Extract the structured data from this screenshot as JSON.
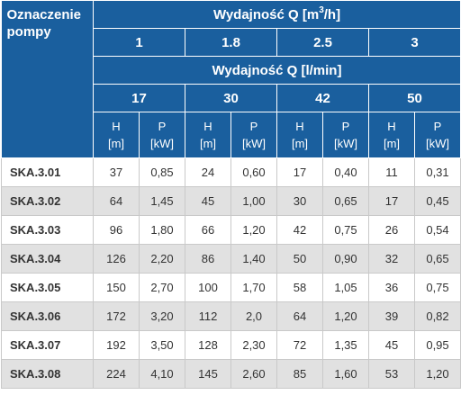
{
  "header": {
    "pump_label": "Oznaczenie pompy",
    "flow_m3h_title": "Wydajność Q [m",
    "flow_m3h_sup": "3",
    "flow_m3h_suffix": "/h]",
    "flow_m3h_values": [
      "1",
      "1.8",
      "2.5",
      "3"
    ],
    "flow_lmin_title": "Wydajność Q [l/min]",
    "flow_lmin_values": [
      "17",
      "30",
      "42",
      "50"
    ],
    "col_h_symbol": "H",
    "col_h_unit": "[m]",
    "col_p_symbol": "P",
    "col_p_unit": "[kW]"
  },
  "rows": [
    {
      "name": "SKA.3.01",
      "cells": [
        "37",
        "0,85",
        "24",
        "0,60",
        "17",
        "0,40",
        "11",
        "0,31"
      ]
    },
    {
      "name": "SKA.3.02",
      "cells": [
        "64",
        "1,45",
        "45",
        "1,00",
        "30",
        "0,65",
        "17",
        "0,45"
      ]
    },
    {
      "name": "SKA.3.03",
      "cells": [
        "96",
        "1,80",
        "66",
        "1,20",
        "42",
        "0,75",
        "26",
        "0,54"
      ]
    },
    {
      "name": "SKA.3.04",
      "cells": [
        "126",
        "2,20",
        "86",
        "1,40",
        "50",
        "0,90",
        "32",
        "0,65"
      ]
    },
    {
      "name": "SKA.3.05",
      "cells": [
        "150",
        "2,70",
        "100",
        "1,70",
        "58",
        "1,05",
        "36",
        "0,75"
      ]
    },
    {
      "name": "SKA.3.06",
      "cells": [
        "172",
        "3,20",
        "112",
        "2,0",
        "64",
        "1,20",
        "39",
        "0,82"
      ]
    },
    {
      "name": "SKA.3.07",
      "cells": [
        "192",
        "3,50",
        "128",
        "2,30",
        "72",
        "1,35",
        "45",
        "0,95"
      ]
    },
    {
      "name": "SKA.3.08",
      "cells": [
        "224",
        "4,10",
        "145",
        "2,60",
        "85",
        "1,60",
        "53",
        "1,20"
      ]
    }
  ]
}
